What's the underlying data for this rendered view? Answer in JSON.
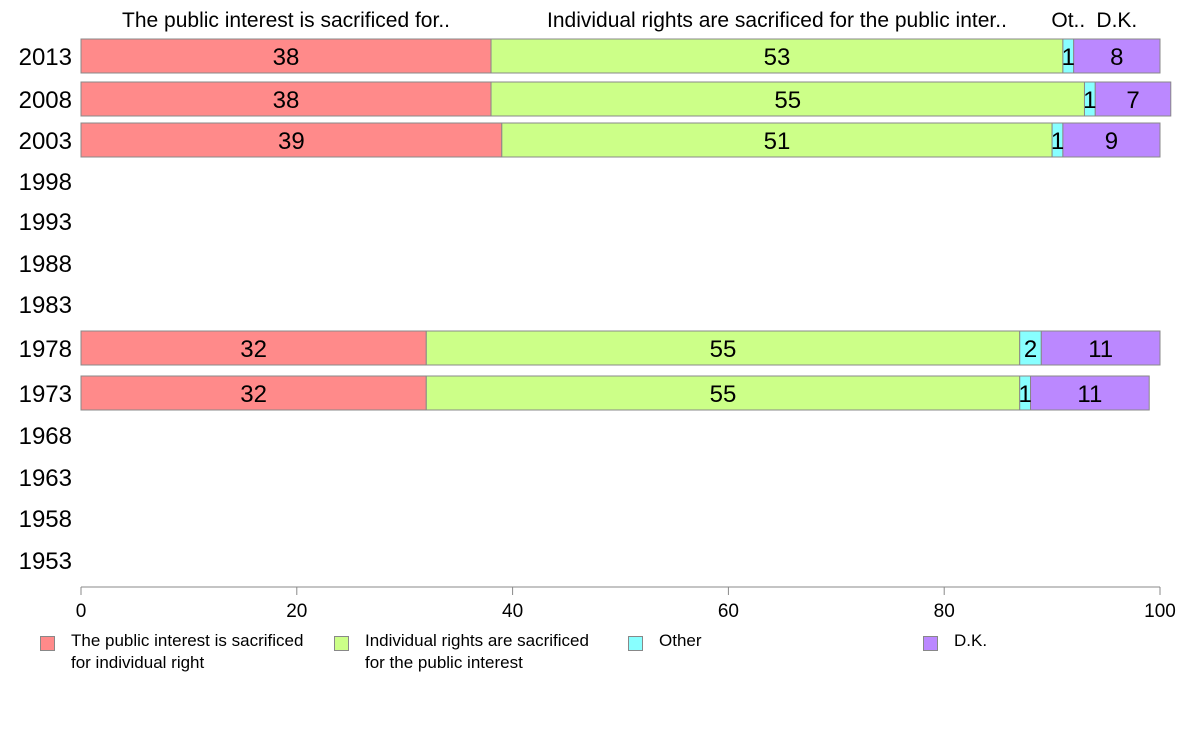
{
  "chart_data": {
    "type": "bar",
    "orientation": "horizontal",
    "stacked": true,
    "categories": [
      "2013",
      "2008",
      "2003",
      "1998",
      "1993",
      "1988",
      "1983",
      "1978",
      "1973",
      "1968",
      "1963",
      "1958",
      "1953"
    ],
    "series": [
      {
        "name": "The public interest is sacrificed for individual right",
        "short_label": "The public interest is sacrificed for..",
        "color": "#ff8a8a",
        "values": [
          38,
          38,
          39,
          null,
          null,
          null,
          null,
          32,
          32,
          null,
          null,
          null,
          null
        ],
        "labels": [
          "38",
          "38",
          "39",
          "",
          "",
          "",
          "",
          "32",
          "32",
          "",
          "",
          "",
          ""
        ]
      },
      {
        "name": "Individual rights are sacrificed for the public interest",
        "short_label": "Individual rights are sacrificed for the public inter..",
        "color": "#ccff88",
        "values": [
          53,
          55,
          51,
          null,
          null,
          null,
          null,
          55,
          55,
          null,
          null,
          null,
          null
        ],
        "labels": [
          "53",
          "55",
          "51",
          "",
          "",
          "",
          "",
          "55",
          "55",
          "",
          "",
          "",
          ""
        ]
      },
      {
        "name": "Other",
        "short_label": "Ot..",
        "color": "#88ffff",
        "values": [
          1,
          1,
          1,
          null,
          null,
          null,
          null,
          2,
          1,
          null,
          null,
          null,
          null
        ],
        "labels": [
          "1",
          "1",
          "1",
          "",
          "",
          "",
          "",
          "2",
          "1",
          "",
          "",
          "",
          ""
        ]
      },
      {
        "name": "D.K.",
        "short_label": "D.K.",
        "color": "#bb88ff",
        "values": [
          8,
          7,
          9,
          null,
          null,
          null,
          null,
          11,
          11,
          null,
          null,
          null,
          null
        ],
        "labels": [
          "8",
          "7",
          "9",
          "",
          "",
          "",
          "",
          "11",
          "11",
          "",
          "",
          "",
          ""
        ]
      }
    ],
    "xlim": [
      0,
      100
    ],
    "xticks": [
      "0",
      "20",
      "40",
      "60",
      "80",
      "100"
    ],
    "grid": false,
    "legend_position": "bottom"
  },
  "legend": {
    "items": [
      {
        "text": "The public interest is sacrificed\nfor individual right"
      },
      {
        "text": "Individual rights are sacrificed\nfor the public interest"
      },
      {
        "text": "Other"
      },
      {
        "text": "D.K."
      }
    ]
  }
}
